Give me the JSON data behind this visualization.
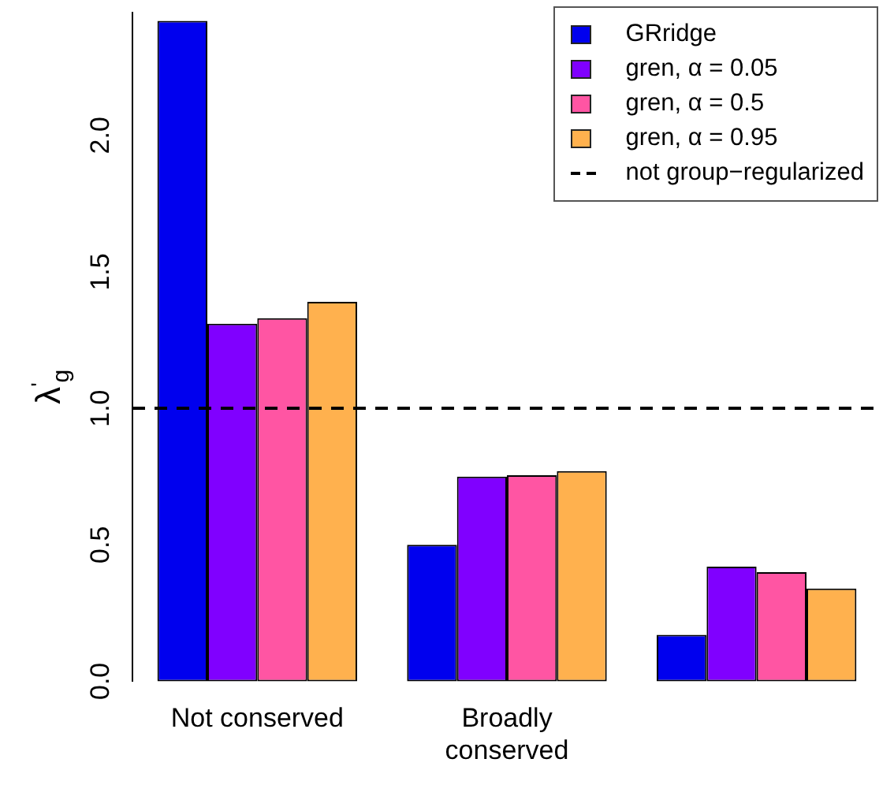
{
  "chart_data": {
    "type": "bar",
    "ylabel": "λ$^{'}$$_{g}$",
    "categories": [
      "Not conserved",
      "Broadly conserved",
      null
    ],
    "series": [
      {
        "name": "GRridge",
        "color": "#0000ee",
        "values": [
          2.42,
          0.5,
          0.17
        ]
      },
      {
        "name": "gren, α = 0.05",
        "color": "#8000ff",
        "values": [
          1.31,
          0.75,
          0.42
        ]
      },
      {
        "name": "gren, α = 0.5",
        "color": "#ff55a3",
        "values": [
          1.33,
          0.755,
          0.4
        ]
      },
      {
        "name": "gren, α = 0.95",
        "color": "#ffb14e",
        "values": [
          1.39,
          0.77,
          0.34
        ]
      }
    ],
    "ylim": [
      0,
      2.45
    ],
    "yticks": [
      {
        "value": 0,
        "label": "0.0"
      },
      {
        "value": 0.5,
        "label": "0.5"
      },
      {
        "value": 1,
        "label": "1.0"
      },
      {
        "value": 1.5,
        "label": "1.5"
      },
      {
        "value": 2,
        "label": "2.0"
      }
    ],
    "ref_lines": [
      {
        "axis": "y",
        "value": 1,
        "label": "not group−regularized",
        "color": "#000000",
        "line_style": "dashed"
      }
    ],
    "grid": false,
    "legend": "top right"
  }
}
